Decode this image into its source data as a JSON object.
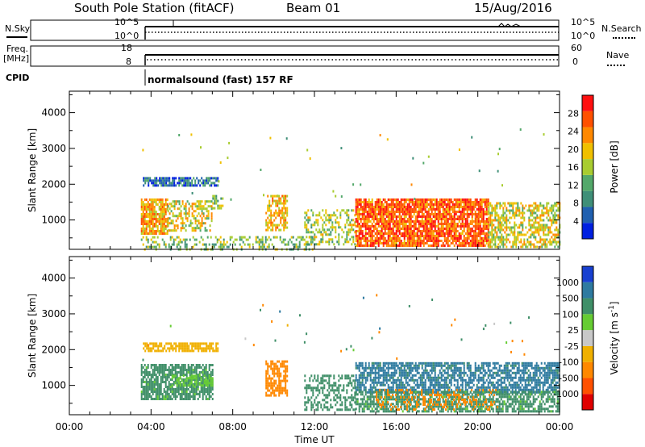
{
  "header": {
    "station": "South Pole Station (fitACF)",
    "beam": "Beam 01",
    "date": "15/Aug/2016"
  },
  "aux_panels": {
    "nsky_label": "N.Sky",
    "nsky_ticks": [
      "10^5",
      "10^0"
    ],
    "nsearch_label": "N.Search",
    "nsearch_ticks": [
      "10^5",
      "10^0"
    ],
    "freq_label_1": "Freq.",
    "freq_label_2": "[MHz]",
    "freq_ticks": [
      "18",
      "8"
    ],
    "nave_label": "Nave",
    "nave_ticks": [
      "60",
      "0"
    ],
    "cpid_label": "CPID",
    "cpid_text": "normalsound (fast) 157 RF"
  },
  "colors": {
    "power_scale": [
      "#0020e0",
      "#2060b0",
      "#3f8f78",
      "#53a86a",
      "#a8cc30",
      "#f0c000",
      "#ff8800",
      "#ff5000",
      "#ff1010"
    ],
    "velocity_scale": [
      "#e00000",
      "#ff5000",
      "#ff8800",
      "#f0b000",
      "#c8c8c8",
      "#66cc33",
      "#3f8f68",
      "#2e7aa0",
      "#1840d0"
    ]
  },
  "chart_data": [
    {
      "type": "heatmap",
      "name": "power",
      "ylabel": "Slant Range [km]",
      "xlabel": "Time UT",
      "x_ticks": [
        "00:00",
        "04:00",
        "08:00",
        "12:00",
        "16:00",
        "20:00",
        "00:00"
      ],
      "x_range_hours": [
        0,
        24
      ],
      "y_ticks": [
        1000,
        2000,
        3000,
        4000
      ],
      "y_range_km": [
        180,
        4600
      ],
      "colorbar_label": "Power [dB]",
      "colorbar_ticks": [
        4,
        8,
        12,
        16,
        20,
        24,
        28
      ],
      "colorbar_range": [
        0,
        32
      ],
      "regions": [
        {
          "t0": 3.6,
          "t1": 7.3,
          "r0": 1980,
          "r1": 2200,
          "value": 6,
          "density": 0.75
        },
        {
          "t0": 3.5,
          "t1": 4.8,
          "r0": 650,
          "r1": 1600,
          "value": 22,
          "density": 0.8
        },
        {
          "t0": 4.8,
          "t1": 7.0,
          "r0": 700,
          "r1": 1550,
          "value": 18,
          "density": 0.55
        },
        {
          "t0": 7.0,
          "t1": 7.5,
          "r0": 1300,
          "r1": 1700,
          "value": 14,
          "density": 0.5
        },
        {
          "t0": 9.6,
          "t1": 10.7,
          "r0": 700,
          "r1": 1700,
          "value": 20,
          "density": 0.6
        },
        {
          "t0": 11.5,
          "t1": 14.0,
          "r0": 350,
          "r1": 1300,
          "value": 16,
          "density": 0.4
        },
        {
          "t0": 14.0,
          "t1": 20.5,
          "r0": 300,
          "r1": 1600,
          "value": 26,
          "density": 0.85
        },
        {
          "t0": 20.5,
          "t1": 24.0,
          "r0": 250,
          "r1": 1500,
          "value": 18,
          "density": 0.6
        },
        {
          "t0": 3.5,
          "t1": 12.0,
          "r0": 190,
          "r1": 550,
          "value": 14,
          "density": 0.35
        }
      ]
    },
    {
      "type": "heatmap",
      "name": "velocity",
      "ylabel": "Slant Range [km]",
      "xlabel": "Time UT",
      "x_ticks": [
        "00:00",
        "04:00",
        "08:00",
        "12:00",
        "16:00",
        "20:00",
        "00:00"
      ],
      "x_range_hours": [
        0,
        24
      ],
      "y_ticks": [
        1000,
        2000,
        3000,
        4000
      ],
      "y_range_km": [
        180,
        4600
      ],
      "colorbar_label": "Velocity [m s^-1]",
      "colorbar_tick_labels": [
        "1000",
        "500",
        "100",
        "25",
        "-25",
        "-100",
        "-500",
        "-1000"
      ],
      "regions": [
        {
          "t0": 3.6,
          "t1": 7.3,
          "r0": 1980,
          "r1": 2200,
          "value": -60,
          "density": 0.75
        },
        {
          "t0": 3.5,
          "t1": 7.0,
          "r0": 600,
          "r1": 1600,
          "value": 150,
          "density": 0.8
        },
        {
          "t0": 5.0,
          "t1": 7.0,
          "r0": 1000,
          "r1": 1300,
          "value": 60,
          "density": 0.5
        },
        {
          "t0": 9.6,
          "t1": 10.7,
          "r0": 700,
          "r1": 1700,
          "value": -300,
          "density": 0.7
        },
        {
          "t0": 11.5,
          "t1": 14.0,
          "r0": 350,
          "r1": 1300,
          "value": 200,
          "density": 0.45
        },
        {
          "t0": 14.0,
          "t1": 24.0,
          "r0": 800,
          "r1": 1650,
          "value": 700,
          "density": 0.7
        },
        {
          "t0": 14.0,
          "t1": 24.0,
          "r0": 300,
          "r1": 850,
          "value": 150,
          "density": 0.7
        },
        {
          "t0": 15.0,
          "t1": 21.0,
          "r0": 350,
          "r1": 900,
          "value": -300,
          "density": 0.25
        }
      ]
    }
  ]
}
